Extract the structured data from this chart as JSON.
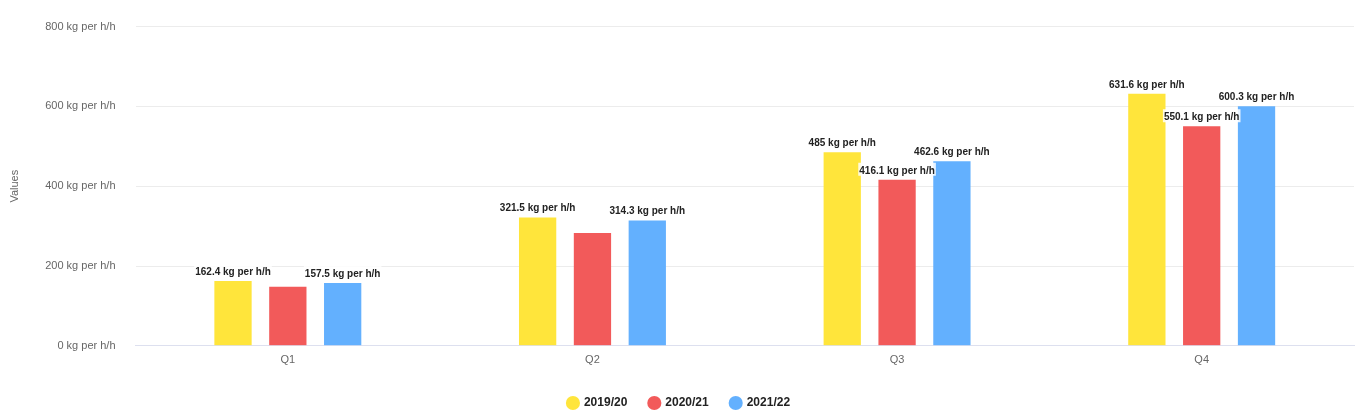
{
  "chart_data": {
    "type": "bar",
    "ylabel": "Values",
    "categories": [
      "Q1",
      "Q2",
      "Q3",
      "Q4"
    ],
    "series": [
      {
        "name": "2019/20",
        "color": "#ffe53b",
        "values": [
          162.4,
          321.5,
          485,
          631.6
        ],
        "value_labels": [
          "162.4 kg per h/h",
          "321.5 kg per h/h",
          "485 kg per h/h",
          "631.6 kg per h/h"
        ]
      },
      {
        "name": "2020/21",
        "color": "#f25a5a",
        "values": [
          148,
          283,
          416.1,
          550.1
        ],
        "value_labels": [
          null,
          null,
          "416.1 kg per h/h",
          "550.1 kg per h/h"
        ]
      },
      {
        "name": "2021/22",
        "color": "#63b0fe",
        "values": [
          157.5,
          314.3,
          462.6,
          600.3
        ],
        "value_labels": [
          "157.5 kg per h/h",
          "314.3 kg per h/h",
          "462.6 kg per h/h",
          "600.3 kg per h/h"
        ]
      }
    ],
    "ylim": [
      0,
      800
    ],
    "yticks": [
      {
        "value": 0,
        "label": "0 kg per h/h"
      },
      {
        "value": 200,
        "label": "200 kg per h/h"
      },
      {
        "value": 400,
        "label": "400 kg per h/h"
      },
      {
        "value": 600,
        "label": "600 kg per h/h"
      },
      {
        "value": 800,
        "label": "800 kg per h/h"
      }
    ],
    "grid": "y",
    "legend": "bottom"
  }
}
